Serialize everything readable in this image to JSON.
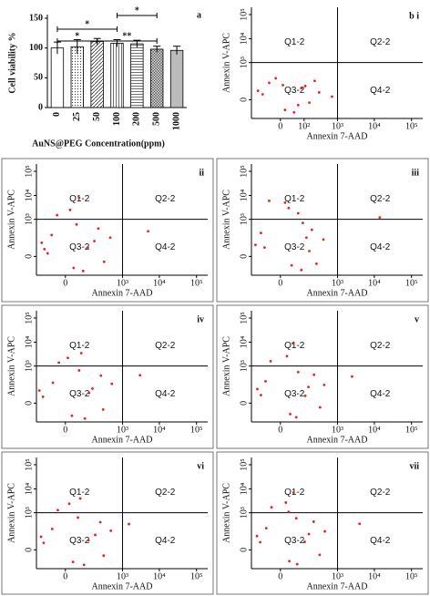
{
  "chart_data": [
    {
      "type": "bar",
      "panel_label": "a",
      "ylabel": "Cell viability %",
      "xlabel": "AuNS@PEG Concentration(ppm)",
      "categories": [
        "0",
        "25",
        "50",
        "100",
        "200",
        "500",
        "1000"
      ],
      "values": [
        100,
        102,
        111,
        108,
        107,
        98,
        96
      ],
      "errors": [
        10,
        12,
        5,
        6,
        6,
        5,
        7
      ],
      "patterns": [
        "none",
        "dots",
        "diagonal",
        "vertical",
        "horizontal",
        "cross",
        "grey"
      ],
      "ylim": [
        0,
        150
      ],
      "yticks": [
        0,
        50,
        100,
        150
      ],
      "annotations": [
        {
          "text": "*",
          "from": "0",
          "to": "50"
        },
        {
          "text": "**",
          "from": "50",
          "to": "500"
        },
        {
          "text": "*",
          "from": "0",
          "to": "100"
        },
        {
          "text": "*",
          "from": "100",
          "to": "500"
        }
      ]
    },
    {
      "type": "scatter",
      "panel_label": "b i",
      "xlabel": "Annexin 7-AAD",
      "ylabel": "Annexin V-APC",
      "xscale": "symlog",
      "yscale": "symlog",
      "xlim": [
        -150,
        200000
      ],
      "ylim": [
        -150,
        200000
      ],
      "gate": [
        1000,
        1000
      ],
      "xticks": [
        0,
        {
          "value": 100,
          "label": "10²"
        },
        {
          "value": 1000,
          "label": "10³"
        },
        {
          "value": 10000,
          "label": "10⁴"
        },
        {
          "value": 100000,
          "label": "10⁵"
        }
      ],
      "yticks": [
        0,
        {
          "value": 1000,
          "label": "10³"
        },
        {
          "value": 10000,
          "label": "10⁴"
        },
        {
          "value": 100000,
          "label": "10⁵"
        }
      ],
      "quadrants": [
        "Q1-2",
        "Q2-2",
        "Q3-2",
        "Q4-2"
      ],
      "series": [
        {
          "color": "#e8202a",
          "x": [
            -60,
            10,
            80,
            -30,
            150,
            40,
            -90,
            220,
            5,
            -10,
            300,
            60,
            110,
            700
          ],
          "y": [
            20,
            -50,
            60,
            120,
            -10,
            -70,
            40,
            150,
            90,
            200,
            30,
            -20,
            80,
            10
          ]
        }
      ]
    },
    {
      "type": "scatter",
      "panel_label": "ii",
      "xlabel": "Annexin 7-AAD",
      "ylabel": "Annexin V-APC",
      "xscale": "symlog",
      "yscale": "symlog",
      "xlim": [
        -150,
        200000
      ],
      "ylim": [
        -150,
        200000
      ],
      "gate": [
        1000,
        1000
      ],
      "xticks": [
        0,
        {
          "value": 1000,
          "label": "10³"
        },
        {
          "value": 10000,
          "label": "10⁴"
        },
        {
          "value": 100000,
          "label": "10⁵"
        }
      ],
      "yticks": [
        0,
        {
          "value": 1000,
          "label": "10³"
        },
        {
          "value": 10000,
          "label": "10⁴"
        },
        {
          "value": 100000,
          "label": "10⁵"
        }
      ],
      "quadrants": [
        "Q1-2",
        "Q2-2",
        "Q3-2",
        "Q4-2"
      ],
      "series": [
        {
          "color": "#e8202a",
          "x": [
            -80,
            20,
            150,
            -40,
            300,
            60,
            -100,
            200,
            10,
            -20,
            450,
            40,
            90,
            5000,
            30,
            -60
          ],
          "y": [
            30,
            -60,
            100,
            200,
            -20,
            -90,
            80,
            400,
            2500,
            1500,
            150,
            8000,
            40,
            300,
            600,
            10
          ]
        }
      ]
    },
    {
      "type": "scatter",
      "panel_label": "iii",
      "xlabel": "Annexin 7-AAD",
      "ylabel": "Annexin V-APC",
      "xscale": "symlog",
      "yscale": "symlog",
      "xlim": [
        -150,
        200000
      ],
      "ylim": [
        -150,
        200000
      ],
      "gate": [
        1000,
        1000
      ],
      "xticks": [
        0,
        {
          "value": 1000,
          "label": "10³"
        },
        {
          "value": 10000,
          "label": "10⁴"
        },
        {
          "value": 100000,
          "label": "10⁵"
        }
      ],
      "yticks": [
        0,
        {
          "value": 1000,
          "label": "10³"
        },
        {
          "value": 10000,
          "label": "10⁴"
        },
        {
          "value": 100000,
          "label": "10⁵"
        }
      ],
      "quadrants": [
        "Q1-2",
        "Q2-2",
        "Q3-2",
        "Q4-2"
      ],
      "series": [
        {
          "color": "#e8202a",
          "x": [
            -50,
            30,
            120,
            -70,
            250,
            80,
            -110,
            180,
            20,
            60,
            400,
            -30,
            150,
            14000,
            90,
            10
          ],
          "y": [
            40,
            -40,
            150,
            250,
            -30,
            -80,
            60,
            350,
            3000,
            1800,
            120,
            6000,
            20,
            1200,
            700,
            5000
          ]
        }
      ]
    },
    {
      "type": "scatter",
      "panel_label": "iv",
      "xlabel": "Annexin 7-AAD",
      "ylabel": "Annexin V-APC",
      "xscale": "symlog",
      "yscale": "symlog",
      "xlim": [
        -150,
        200000
      ],
      "ylim": [
        -150,
        200000
      ],
      "gate": [
        1000,
        1000
      ],
      "xticks": [
        0,
        {
          "value": 1000,
          "label": "10³"
        },
        {
          "value": 10000,
          "label": "10⁴"
        },
        {
          "value": 100000,
          "label": "10⁵"
        }
      ],
      "yticks": [
        0,
        {
          "value": 1000,
          "label": "10³"
        },
        {
          "value": 10000,
          "label": "10⁴"
        },
        {
          "value": 100000,
          "label": "10⁵"
        }
      ],
      "quadrants": [
        "Q1-2",
        "Q2-2",
        "Q3-2",
        "Q4-2"
      ],
      "series": [
        {
          "color": "#e8202a",
          "x": [
            -90,
            15,
            130,
            -35,
            280,
            70,
            -120,
            240,
            5,
            -15,
            500,
            50,
            100,
            3000,
            40
          ],
          "y": [
            25,
            -70,
            90,
            180,
            -25,
            -100,
            70,
            380,
            2200,
            1400,
            160,
            3500,
            50,
            400,
            650
          ]
        }
      ]
    },
    {
      "type": "scatter",
      "panel_label": "v",
      "xlabel": "Annexin 7-AAD",
      "ylabel": "Annexin V-APC",
      "xscale": "symlog",
      "yscale": "symlog",
      "xlim": [
        -150,
        200000
      ],
      "ylim": [
        -150,
        200000
      ],
      "gate": [
        1000,
        1000
      ],
      "xticks": [
        0,
        {
          "value": 1000,
          "label": "10³"
        },
        {
          "value": 10000,
          "label": "10⁴"
        },
        {
          "value": 100000,
          "label": "10⁵"
        }
      ],
      "yticks": [
        0,
        {
          "value": 1000,
          "label": "10³"
        },
        {
          "value": 10000,
          "label": "10⁴"
        },
        {
          "value": 100000,
          "label": "10⁵"
        }
      ],
      "quadrants": [
        "Q1-2",
        "Q2-2",
        "Q3-2",
        "Q4-2"
      ],
      "series": [
        {
          "color": "#e8202a",
          "x": [
            -70,
            25,
            140,
            -45,
            320,
            50,
            -95,
            210,
            15,
            -25,
            420,
            35,
            110,
            2500,
            60
          ],
          "y": [
            35,
            -55,
            110,
            210,
            -15,
            -85,
            85,
            420,
            2600,
            1600,
            140,
            9000,
            30,
            350,
            550
          ]
        }
      ]
    },
    {
      "type": "scatter",
      "panel_label": "vi",
      "xlabel": "Annexin 7-AAD",
      "ylabel": "Annexin V-APC",
      "xscale": "symlog",
      "yscale": "symlog",
      "xlim": [
        -150,
        200000
      ],
      "ylim": [
        -150,
        200000
      ],
      "gate": [
        1000,
        1000
      ],
      "xticks": [
        0,
        {
          "value": 1000,
          "label": "10³"
        },
        {
          "value": 10000,
          "label": "10⁴"
        },
        {
          "value": 100000,
          "label": "10⁵"
        }
      ],
      "yticks": [
        0,
        {
          "value": 1000,
          "label": "10³"
        },
        {
          "value": 10000,
          "label": "10⁴"
        },
        {
          "value": 100000,
          "label": "10⁵"
        }
      ],
      "quadrants": [
        "Q1-2",
        "Q2-2",
        "Q3-2",
        "Q4-2"
      ],
      "series": [
        {
          "color": "#e8202a",
          "x": [
            -85,
            18,
            160,
            -38,
            290,
            65,
            -105,
            230,
            8,
            -18,
            470,
            45,
            95,
            1500,
            35
          ],
          "y": [
            28,
            -65,
            95,
            190,
            -22,
            -95,
            75,
            390,
            2400,
            1300,
            155,
            4000,
            45,
            320,
            620
          ]
        }
      ]
    },
    {
      "type": "scatter",
      "panel_label": "vii",
      "xlabel": "Annexin 7-AAD",
      "ylabel": "Annexin V-APC",
      "xscale": "symlog",
      "yscale": "symlog",
      "xlim": [
        -150,
        200000
      ],
      "ylim": [
        -150,
        200000
      ],
      "gate": [
        1000,
        1000
      ],
      "xticks": [
        0,
        {
          "value": 1000,
          "label": "10³"
        },
        {
          "value": 10000,
          "label": "10⁴"
        },
        {
          "value": 100000,
          "label": "10⁵"
        }
      ],
      "yticks": [
        0,
        {
          "value": 1000,
          "label": "10³"
        },
        {
          "value": 10000,
          "label": "10⁴"
        },
        {
          "value": 100000,
          "label": "10⁵"
        }
      ],
      "quadrants": [
        "Q1-2",
        "Q2-2",
        "Q3-2",
        "Q4-2"
      ],
      "series": [
        {
          "color": "#e8202a",
          "x": [
            -75,
            22,
            145,
            -42,
            310,
            55,
            -98,
            205,
            12,
            -22,
            440,
            38,
            105,
            4000,
            50,
            20
          ],
          "y": [
            32,
            -58,
            105,
            205,
            -18,
            -88,
            82,
            410,
            2700,
            1700,
            145,
            7000,
            35,
            330,
            580,
            1100
          ]
        }
      ]
    }
  ]
}
